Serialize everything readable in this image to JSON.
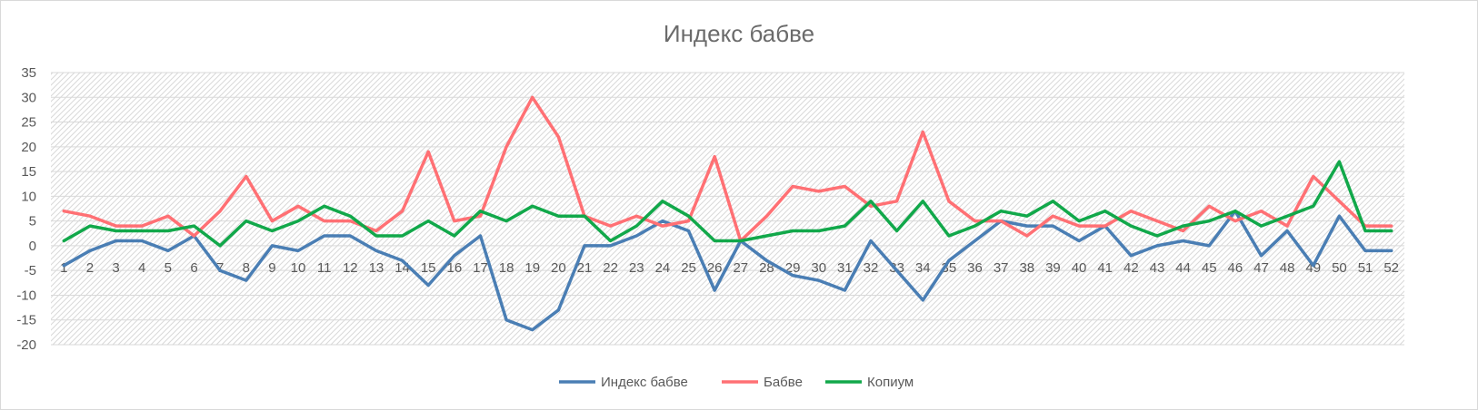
{
  "chart_data": {
    "type": "line",
    "title": "Индекс бабве",
    "xlabel": "",
    "ylabel": "",
    "ylim": [
      -20,
      35
    ],
    "yticks": [
      35,
      30,
      25,
      20,
      15,
      10,
      5,
      0,
      -5,
      -10,
      -15,
      -20
    ],
    "grid": true,
    "legend_position": "bottom",
    "categories": [
      "1",
      "2",
      "3",
      "4",
      "5",
      "6",
      "7",
      "8",
      "9",
      "10",
      "11",
      "12",
      "13",
      "14",
      "15",
      "16",
      "17",
      "18",
      "19",
      "20",
      "21",
      "22",
      "23",
      "24",
      "25",
      "26",
      "27",
      "28",
      "29",
      "30",
      "31",
      "32",
      "33",
      "34",
      "35",
      "36",
      "37",
      "38",
      "39",
      "40",
      "41",
      "42",
      "43",
      "44",
      "45",
      "46",
      "47",
      "48",
      "49",
      "50",
      "51",
      "52"
    ],
    "series": [
      {
        "name": "Индекс бабве",
        "color": "#4a7eb4",
        "values": [
          -4,
          -1,
          1,
          1,
          -1,
          2,
          -5,
          -7,
          0,
          -1,
          2,
          2,
          -1,
          -3,
          -8,
          -2,
          2,
          -15,
          -17,
          -13,
          0,
          0,
          2,
          5,
          3,
          -9,
          1,
          -3,
          -6,
          -7,
          -9,
          1,
          -5,
          -11,
          -3,
          1,
          5,
          4,
          4,
          1,
          4,
          -2,
          0,
          1,
          0,
          7,
          -2,
          3,
          -4,
          6,
          -1,
          -1
        ]
      },
      {
        "name": "Бабве",
        "color": "#ff7074",
        "values": [
          7,
          6,
          4,
          4,
          6,
          2,
          7,
          14,
          5,
          8,
          5,
          5,
          3,
          7,
          19,
          5,
          6,
          20,
          30,
          22,
          6,
          4,
          6,
          4,
          5,
          18,
          1,
          6,
          12,
          11,
          12,
          8,
          9,
          23,
          9,
          5,
          5,
          2,
          6,
          4,
          4,
          7,
          5,
          3,
          8,
          5,
          7,
          4,
          14,
          9,
          4,
          4
        ]
      },
      {
        "name": "Копиум",
        "color": "#11a84a",
        "values": [
          1,
          4,
          3,
          3,
          3,
          4,
          0,
          5,
          3,
          5,
          8,
          6,
          2,
          2,
          5,
          2,
          7,
          5,
          8,
          6,
          6,
          1,
          4,
          9,
          6,
          1,
          1,
          2,
          3,
          3,
          4,
          9,
          3,
          9,
          2,
          4,
          7,
          6,
          9,
          5,
          7,
          4,
          2,
          4,
          5,
          7,
          4,
          6,
          8,
          17,
          3,
          3
        ]
      }
    ]
  }
}
